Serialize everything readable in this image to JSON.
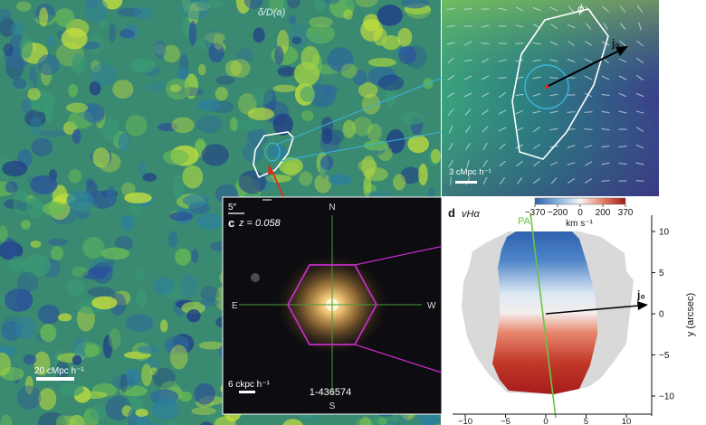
{
  "panel_a": {
    "quantity_label": "δ/D(a)",
    "scalebar_label": "20 cMpc h⁻¹"
  },
  "panel_b": {
    "phi_label": "ϕ",
    "vector_label": "j₀",
    "scalebar_label": "3 cMpc h⁻¹"
  },
  "panel_c": {
    "letter": "c",
    "redshift_label": "z = 0.058",
    "angular_scale_label": "5″",
    "compass": {
      "north": "N",
      "south": "S",
      "east": "E",
      "west": "W"
    },
    "scalebar_label": "6 ckpc h⁻¹",
    "galaxy_id": "1-436574"
  },
  "panel_d": {
    "letter": "d",
    "quantity_label": "vHα",
    "colorbar_ticks": [
      "−370",
      "−200",
      "0",
      "200",
      "370"
    ],
    "colorbar_unit": "km s⁻¹",
    "pa_label": "PA",
    "vector_label": "j₀",
    "y_axis_label": "y (arcsec)",
    "y_ticks": [
      "10",
      "5",
      "0",
      "−5",
      "−10"
    ],
    "x_ticks": [
      "−10",
      "−5",
      "0",
      "5",
      "10"
    ]
  },
  "colors": {
    "density_low": "#1e3f8c",
    "density_mid": "#2f8a70",
    "density_high": "#c9e23a",
    "contour": "#ffffff",
    "contour_inner": "#3cb5d8",
    "connector_red": "#e02a1a",
    "hexagon": "#c52cc8",
    "velocity_red": "#b3201e",
    "velocity_blue": "#2f62b0",
    "pa_line": "#6ac545",
    "mask_grey": "#d9d9d9"
  }
}
